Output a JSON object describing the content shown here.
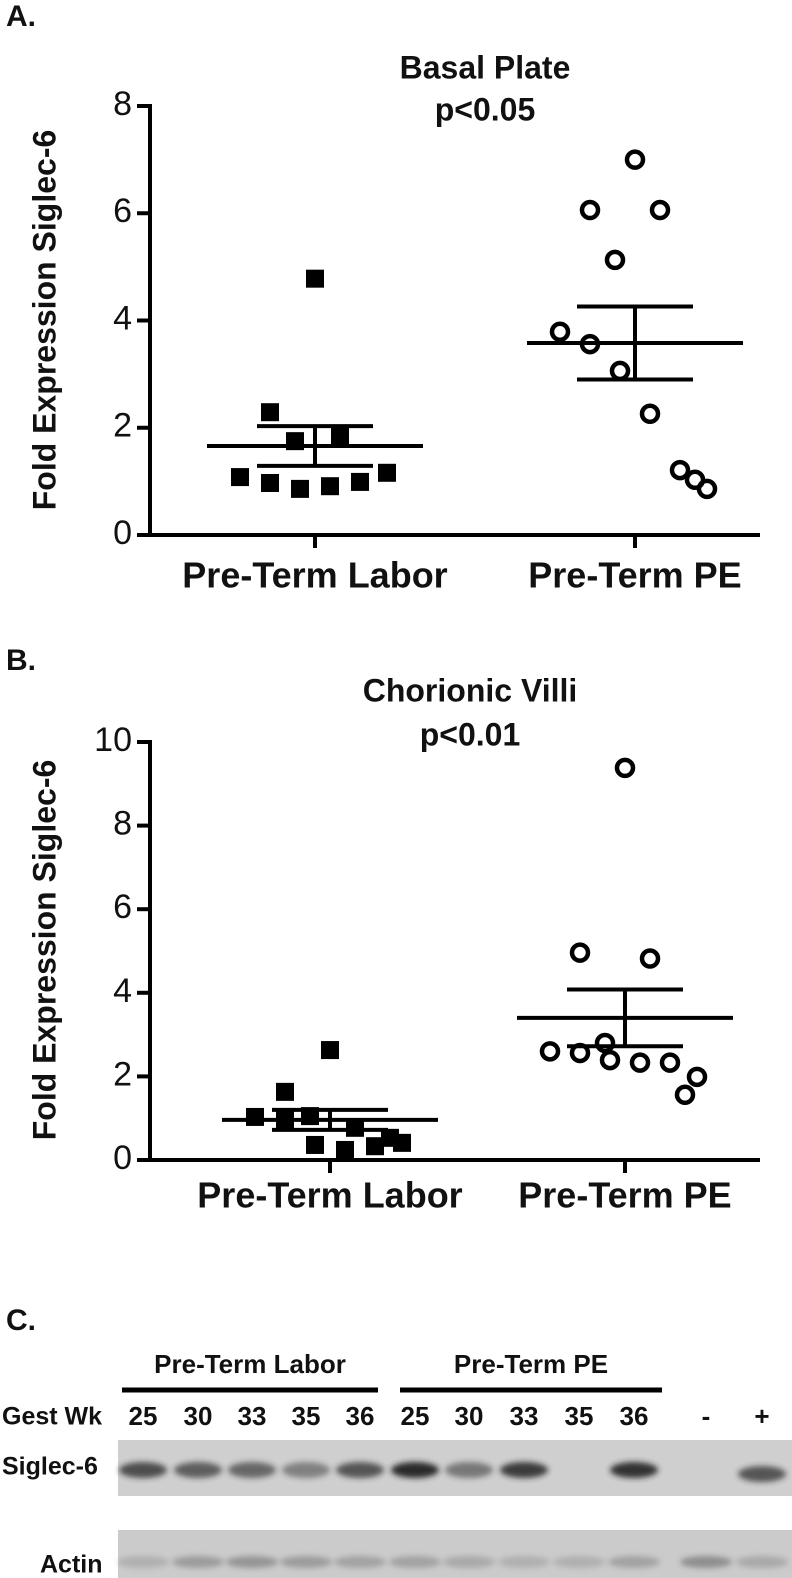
{
  "chart_data": [
    {
      "type": "dot",
      "label": "A.",
      "title": "Basal Plate",
      "subtitle": "p<0.05",
      "ylabel": "Fold Expression Siglec-6",
      "categories": [
        "Pre-Term Labor",
        "Pre-Term PE"
      ],
      "markers": [
        "square",
        "circle"
      ],
      "values": [
        [
          4.78,
          2.29,
          1.83,
          1.75,
          1.08,
          0.97,
          0.86,
          0.91,
          0.99,
          1.16
        ],
        [
          7.0,
          6.06,
          6.06,
          5.13,
          3.79,
          3.56,
          3.06,
          2.26,
          1.21,
          0.86,
          1.03
        ]
      ],
      "means": [
        1.66,
        3.58
      ],
      "sem": [
        0.37,
        0.68
      ],
      "ylim": [
        0,
        8
      ],
      "yticks": [
        0,
        2,
        4,
        6,
        8
      ]
    },
    {
      "type": "dot",
      "label": "B.",
      "title": "Chorionic Villi",
      "subtitle": "p<0.01",
      "ylabel": "Fold Expression Siglec-6",
      "categories": [
        "Pre-Term Labor",
        "Pre-Term PE"
      ],
      "markers": [
        "square",
        "circle"
      ],
      "values": [
        [
          2.63,
          1.63,
          0.77,
          1.05,
          1.03,
          0.96,
          0.36,
          0.24,
          0.33,
          0.41,
          0.53
        ],
        [
          9.38,
          4.96,
          4.82,
          2.8,
          2.6,
          2.56,
          2.39,
          2.33,
          2.33,
          1.99,
          1.56
        ]
      ],
      "means": [
        0.96,
        3.4
      ],
      "sem": [
        0.24,
        0.68
      ],
      "ylim": [
        0,
        10
      ],
      "yticks": [
        0,
        2,
        4,
        6,
        8,
        10
      ]
    }
  ],
  "blot": {
    "label": "C.",
    "groups": [
      "Pre-Term Labor",
      "Pre-Term PE"
    ],
    "row_header": "Gest Wk",
    "lanes": [
      "25",
      "30",
      "33",
      "35",
      "36",
      "25",
      "30",
      "33",
      "35",
      "36",
      "-",
      "+"
    ],
    "rows": [
      "Siglec-6",
      "Actin"
    ]
  }
}
